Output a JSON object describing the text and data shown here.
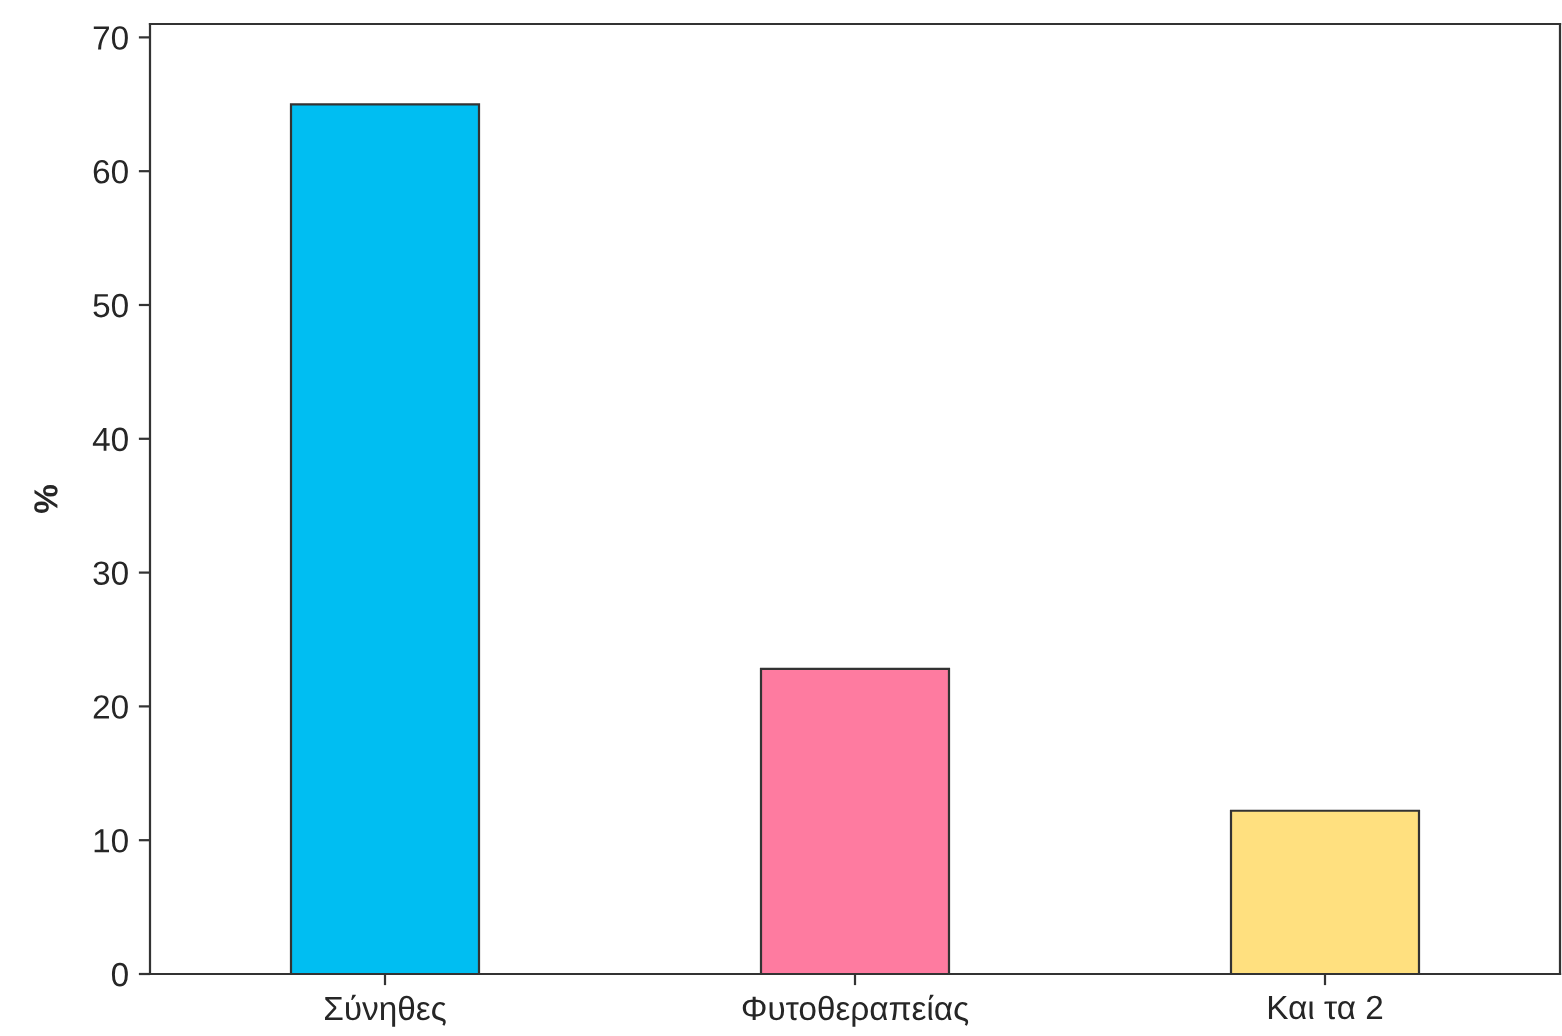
{
  "chart_data": {
    "type": "bar",
    "ylabel": "%",
    "categories": [
      "Σύνηθες",
      "Φυτοθεραπείας",
      "Και τα 2"
    ],
    "values": [
      65,
      22.8,
      12.2
    ],
    "colors": [
      "#00bef2",
      "#fe7ba0",
      "#ffe07f"
    ],
    "ylim": [
      0,
      71
    ],
    "yticks": [
      0,
      10,
      20,
      30,
      40,
      50,
      60,
      70
    ],
    "grid": false
  }
}
